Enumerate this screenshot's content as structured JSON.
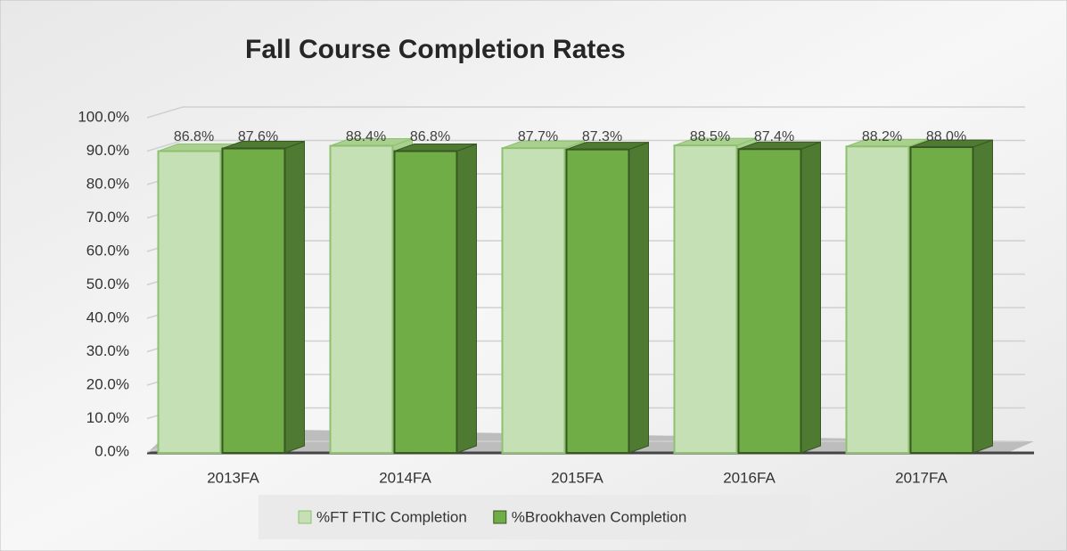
{
  "chart_data": {
    "type": "bar",
    "title": "Fall Course Completion Rates",
    "categories": [
      "2013FA",
      "2014FA",
      "2015FA",
      "2016FA",
      "2017FA"
    ],
    "series": [
      {
        "name": "%FT FTIC Completion",
        "color": "#c5e0b4",
        "values": [
          86.8,
          88.4,
          87.7,
          88.5,
          88.2
        ],
        "value_labels": [
          "86.8%",
          "88.4%",
          "87.7%",
          "88.5%",
          "88.2%"
        ]
      },
      {
        "name": "%Brookhaven Completion",
        "color": "#70ad47",
        "values": [
          87.6,
          86.8,
          87.3,
          87.4,
          88.0
        ],
        "value_labels": [
          "87.6%",
          "86.8%",
          "87.3%",
          "87.4%",
          "88.0%"
        ]
      }
    ],
    "ylim": [
      0,
      100
    ],
    "yticks": [
      {
        "value": 0,
        "label": "0.0%"
      },
      {
        "value": 10,
        "label": "10.0%"
      },
      {
        "value": 20,
        "label": "20.0%"
      },
      {
        "value": 30,
        "label": "30.0%"
      },
      {
        "value": 40,
        "label": "40.0%"
      },
      {
        "value": 50,
        "label": "50.0%"
      },
      {
        "value": 60,
        "label": "60.0%"
      },
      {
        "value": 70,
        "label": "70.0%"
      },
      {
        "value": 80,
        "label": "80.0%"
      },
      {
        "value": 90,
        "label": "90.0%"
      },
      {
        "value": 100,
        "label": "100.0%"
      }
    ],
    "grid": true,
    "legend": "bottom"
  }
}
